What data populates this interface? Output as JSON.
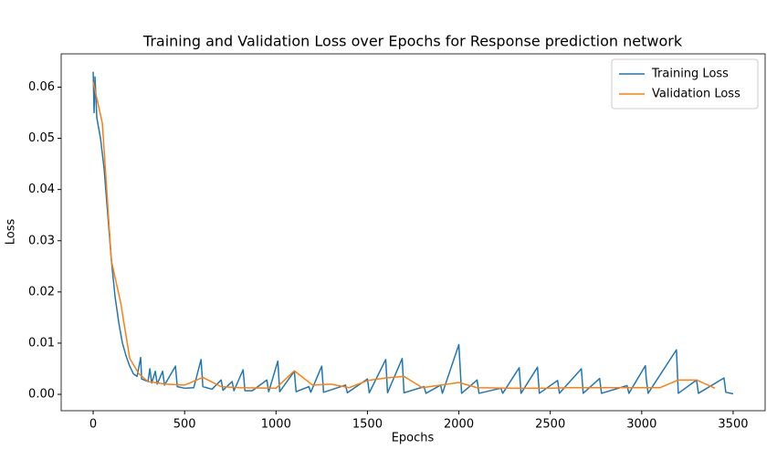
{
  "chart_data": {
    "type": "line",
    "title": "Training and Validation Loss over Epochs for Response prediction network",
    "x_label": "Epochs",
    "y_label": "Loss",
    "xlim": [
      -175,
      3675
    ],
    "xticks": [
      0,
      500,
      1000,
      1500,
      2000,
      2500,
      3000,
      3500
    ],
    "ylim": [
      -0.0032,
      0.0665
    ],
    "yticks": [
      {
        "value": 0,
        "label": "0.00"
      },
      0.01,
      0.02,
      0.03,
      0.04,
      0.05,
      0.06
    ],
    "legend": "upper right",
    "series": [
      {
        "name": "Training Loss",
        "color": "#1f77b4",
        "x": [
          0,
          5,
          10,
          20,
          40,
          60,
          80,
          100,
          120,
          140,
          160,
          180,
          200,
          220,
          240,
          260,
          265,
          300,
          310,
          320,
          340,
          350,
          380,
          390,
          450,
          460,
          500,
          550,
          590,
          600,
          650,
          700,
          710,
          760,
          770,
          820,
          830,
          870,
          950,
          960,
          1010,
          1020,
          1100,
          1110,
          1180,
          1190,
          1250,
          1260,
          1380,
          1390,
          1500,
          1510,
          1600,
          1610,
          1690,
          1700,
          1810,
          1820,
          1900,
          1910,
          2000,
          2005,
          2015,
          2100,
          2110,
          2230,
          2240,
          2330,
          2340,
          2430,
          2440,
          2540,
          2550,
          2670,
          2680,
          2770,
          2780,
          2920,
          2930,
          3020,
          3025,
          3035,
          3190,
          3200,
          3300,
          3310,
          3450,
          3460,
          3500
        ],
        "values": [
          0.063,
          0.055,
          0.062,
          0.054,
          0.05,
          0.044,
          0.035,
          0.026,
          0.019,
          0.014,
          0.01,
          0.0075,
          0.0055,
          0.004,
          0.0035,
          0.0072,
          0.003,
          0.0025,
          0.005,
          0.0022,
          0.0045,
          0.002,
          0.0045,
          0.0018,
          0.0055,
          0.0015,
          0.0012,
          0.0013,
          0.0068,
          0.0015,
          0.001,
          0.0028,
          0.0008,
          0.0025,
          0.0007,
          0.0048,
          0.0007,
          0.0007,
          0.0028,
          0.0005,
          0.0065,
          0.0005,
          0.0045,
          0.0005,
          0.0015,
          0.0004,
          0.0055,
          0.0004,
          0.0018,
          0.0003,
          0.003,
          0.0003,
          0.0068,
          0.0003,
          0.007,
          0.0003,
          0.0015,
          0.0002,
          0.0018,
          0.0002,
          0.0097,
          0.0065,
          0.0002,
          0.0028,
          0.0002,
          0.0012,
          0.0002,
          0.0052,
          0.0002,
          0.0053,
          0.0002,
          0.0027,
          0.0002,
          0.005,
          0.0002,
          0.0031,
          0.0002,
          0.0017,
          0.0002,
          0.0056,
          0.003,
          0.0002,
          0.0087,
          0.0002,
          0.0028,
          0.0002,
          0.0032,
          0.0004,
          0.0001
        ]
      },
      {
        "name": "Validation Loss",
        "color": "#ff7f0e",
        "x": [
          0,
          50,
          100,
          150,
          200,
          250,
          300,
          400,
          500,
          600,
          700,
          800,
          1000,
          1100,
          1200,
          1300,
          1400,
          1500,
          1600,
          1700,
          1800,
          2000,
          2100,
          2300,
          2500,
          2600,
          2700,
          3100,
          3200,
          3300,
          3400
        ],
        "values": [
          0.061,
          0.053,
          0.026,
          0.018,
          0.007,
          0.004,
          0.0025,
          0.002,
          0.0018,
          0.0033,
          0.0015,
          0.0013,
          0.0012,
          0.0046,
          0.0018,
          0.002,
          0.0013,
          0.0027,
          0.0032,
          0.0035,
          0.0013,
          0.0023,
          0.0013,
          0.0012,
          0.0012,
          0.0013,
          0.0013,
          0.0013,
          0.0028,
          0.0028,
          0.0012
        ]
      }
    ]
  }
}
